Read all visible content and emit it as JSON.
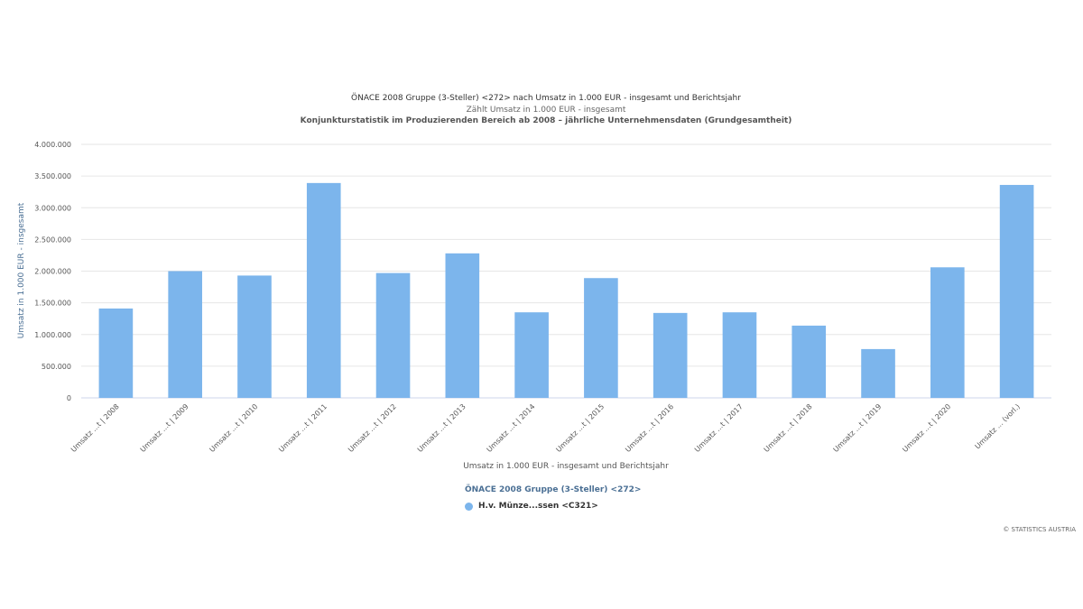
{
  "chart_data": {
    "type": "bar",
    "title": "ÖNACE 2008 Gruppe (3-Steller) <272> nach Umsatz in 1.000 EUR - insgesamt und Berichtsjahr",
    "subtitle": "Zählt Umsatz in 1.000 EUR - insgesamt",
    "subtitle2": "Konjunkturstatistik im Produzierenden Bereich ab 2008 – jährliche Unternehmensdaten (Grundgesamtheit)",
    "xlabel": "Umsatz in 1.000 EUR - insgesamt und Berichtsjahr",
    "ylabel": "Umsatz in 1.000 EUR - insgesamt",
    "categories": [
      "Umsatz ...t | 2008",
      "Umsatz ...t | 2009",
      "Umsatz ...t | 2010",
      "Umsatz ...t | 2011",
      "Umsatz ...t | 2012",
      "Umsatz ...t | 2013",
      "Umsatz ...t | 2014",
      "Umsatz ...t | 2015",
      "Umsatz ...t | 2016",
      "Umsatz ...t | 2017",
      "Umsatz ...t | 2018",
      "Umsatz ...t | 2019",
      "Umsatz ...t | 2020",
      "Umsatz ... (vorl.)"
    ],
    "yticks": [
      "0",
      "500.000",
      "1.000.000",
      "1.500.000",
      "2.000.000",
      "2.500.000",
      "3.000.000",
      "3.500.000",
      "4.000.000"
    ],
    "ylim": [
      0,
      4000000
    ],
    "grid": true,
    "legend_position": "bottom-center",
    "legend_title": "ÖNACE 2008 Gruppe (3-Steller) <272>",
    "series": [
      {
        "name": "H.v. Münze...ssen <C321>",
        "color": "#7cb5ec",
        "values": [
          1410000,
          2000000,
          1930000,
          3390000,
          1970000,
          2280000,
          1350000,
          1890000,
          1340000,
          1350000,
          1140000,
          770000,
          2060000,
          3360000
        ]
      }
    ]
  },
  "credits": "© STATISTICS AUSTRIA"
}
